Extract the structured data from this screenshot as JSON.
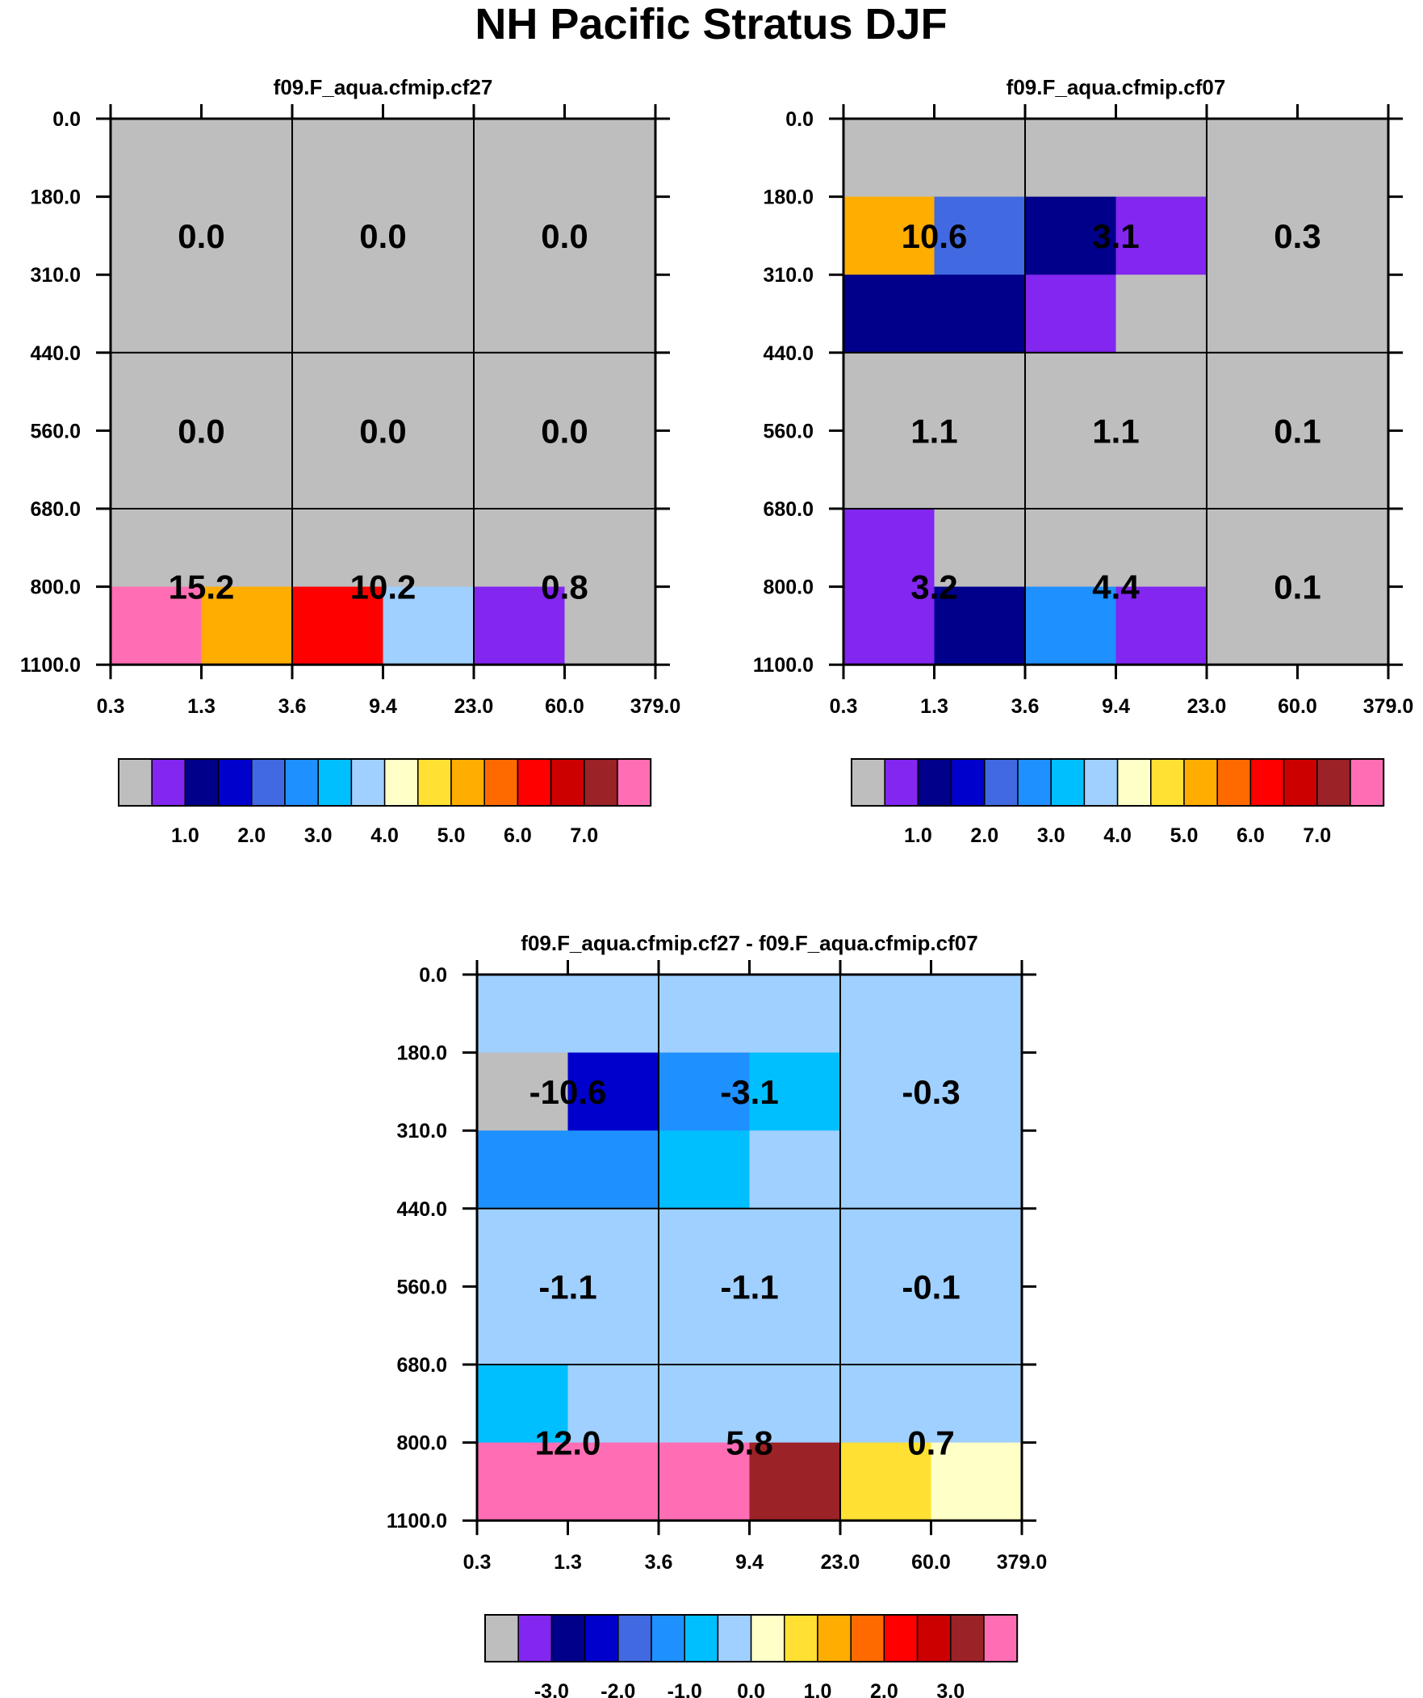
{
  "figure_title": "NH Pacific Stratus DJF",
  "chart_data": [
    {
      "type": "heatmap",
      "title": "f09.F_aqua.cfmip.cf27",
      "x_ticks": [
        "0.3",
        "1.3",
        "3.6",
        "9.4",
        "23.0",
        "60.0",
        "379.0"
      ],
      "y_ticks": [
        "0.0",
        "180.0",
        "310.0",
        "440.0",
        "560.0",
        "680.0",
        "800.0",
        "1100.0"
      ],
      "fill_rows": [
        [
          "gray",
          "gray",
          "gray",
          "gray",
          "gray",
          "gray"
        ],
        [
          "gray",
          "gray",
          "gray",
          "gray",
          "gray",
          "gray"
        ],
        [
          "gray",
          "gray",
          "gray",
          "gray",
          "gray",
          "gray"
        ],
        [
          "gray",
          "gray",
          "gray",
          "gray",
          "gray",
          "gray"
        ],
        [
          "gray",
          "gray",
          "gray",
          "gray",
          "gray",
          "gray"
        ],
        [
          "gray",
          "gray",
          "gray",
          "gray",
          "gray",
          "gray"
        ],
        [
          "pink",
          "orange",
          "red",
          "lightblue",
          "purple",
          "gray"
        ]
      ],
      "block_values": [
        [
          "0.0",
          "0.0",
          "0.0"
        ],
        [
          "0.0",
          "0.0",
          "0.0"
        ],
        [
          "15.2",
          "10.2",
          "0.8"
        ]
      ],
      "colorbar": {
        "boxes": [
          "gray",
          "purple",
          "navy",
          "blue",
          "royalblue",
          "dodgerblue",
          "deepskyblue",
          "lightblue",
          "lightyellow",
          "gold",
          "orange",
          "darkorange",
          "red",
          "darkred",
          "brown",
          "pink"
        ],
        "labels": [
          "1.0",
          "2.0",
          "3.0",
          "4.0",
          "5.0",
          "6.0",
          "7.0"
        ]
      }
    },
    {
      "type": "heatmap",
      "title": "f09.F_aqua.cfmip.cf07",
      "x_ticks": [
        "0.3",
        "1.3",
        "3.6",
        "9.4",
        "23.0",
        "60.0",
        "379.0"
      ],
      "y_ticks": [
        "0.0",
        "180.0",
        "310.0",
        "440.0",
        "560.0",
        "680.0",
        "800.0",
        "1100.0"
      ],
      "fill_rows": [
        [
          "gray",
          "gray",
          "gray",
          "gray",
          "gray",
          "gray"
        ],
        [
          "amber",
          "royalblue",
          "navy",
          "purple",
          "gray",
          "gray"
        ],
        [
          "navy",
          "navy",
          "purple",
          "gray",
          "gray",
          "gray"
        ],
        [
          "gray",
          "gray",
          "gray",
          "gray",
          "gray",
          "gray"
        ],
        [
          "gray",
          "gray",
          "gray",
          "gray",
          "gray",
          "gray"
        ],
        [
          "purple",
          "gray",
          "gray",
          "gray",
          "gray",
          "gray"
        ],
        [
          "purple",
          "navy",
          "dodgerblue",
          "purple",
          "gray",
          "gray"
        ]
      ],
      "block_values": [
        [
          "10.6",
          "3.1",
          "0.3"
        ],
        [
          "1.1",
          "1.1",
          "0.1"
        ],
        [
          "3.2",
          "4.4",
          "0.1"
        ]
      ],
      "colorbar": {
        "boxes": [
          "gray",
          "purple",
          "navy",
          "blue",
          "royalblue",
          "dodgerblue",
          "deepskyblue",
          "lightblue",
          "lightyellow",
          "gold",
          "orange",
          "darkorange",
          "red",
          "darkred",
          "brown",
          "pink"
        ],
        "labels": [
          "1.0",
          "2.0",
          "3.0",
          "4.0",
          "5.0",
          "6.0",
          "7.0"
        ]
      }
    },
    {
      "type": "heatmap",
      "title": "f09.F_aqua.cfmip.cf27 - f09.F_aqua.cfmip.cf07",
      "x_ticks": [
        "0.3",
        "1.3",
        "3.6",
        "9.4",
        "23.0",
        "60.0",
        "379.0"
      ],
      "y_ticks": [
        "0.0",
        "180.0",
        "310.0",
        "440.0",
        "560.0",
        "680.0",
        "800.0",
        "1100.0"
      ],
      "fill_rows": [
        [
          "lightblue",
          "lightblue",
          "lightblue",
          "lightblue",
          "lightblue",
          "lightblue"
        ],
        [
          "gray",
          "blue",
          "dodgerblue",
          "deepskyblue",
          "lightblue",
          "lightblue"
        ],
        [
          "dodgerblue",
          "dodgerblue",
          "deepskyblue",
          "lightblue",
          "lightblue",
          "lightblue"
        ],
        [
          "lightblue",
          "lightblue",
          "lightblue",
          "lightblue",
          "lightblue",
          "lightblue"
        ],
        [
          "lightblue",
          "lightblue",
          "lightblue",
          "lightblue",
          "lightblue",
          "lightblue"
        ],
        [
          "deepskyblue",
          "lightblue",
          "lightblue",
          "lightblue",
          "lightblue",
          "lightblue"
        ],
        [
          "pink",
          "pink",
          "pink",
          "brown",
          "gold",
          "lightyellow"
        ]
      ],
      "block_values": [
        [
          "-10.6",
          "-3.1",
          "-0.3"
        ],
        [
          "-1.1",
          "-1.1",
          "-0.1"
        ],
        [
          "12.0",
          "5.8",
          "0.7"
        ]
      ],
      "colorbar": {
        "boxes": [
          "gray",
          "purple",
          "navy",
          "blue",
          "royalblue",
          "dodgerblue",
          "deepskyblue",
          "lightblue",
          "lightyellow",
          "gold",
          "orange",
          "darkorange",
          "red",
          "darkred",
          "brown",
          "pink"
        ],
        "labels": [
          "-3.0",
          "-2.0",
          "-1.0",
          "0.0",
          "1.0",
          "2.0",
          "3.0"
        ]
      }
    }
  ],
  "palette": {
    "gray": "#bebebe",
    "purple": "#8226f0",
    "navy": "#00008b",
    "blue": "#0000cd",
    "royalblue": "#4169e1",
    "dodgerblue": "#1e90ff",
    "deepskyblue": "#00bfff",
    "lightblue": "#a0d0ff",
    "lightyellow": "#ffffc8",
    "gold": "#ffe033",
    "amber": "#ffad00",
    "orange": "#ffad00",
    "darkorange": "#ff6a00",
    "red": "#ff0000",
    "darkred": "#cd0000",
    "brown": "#9b2226",
    "pink": "#ff6eb4"
  }
}
